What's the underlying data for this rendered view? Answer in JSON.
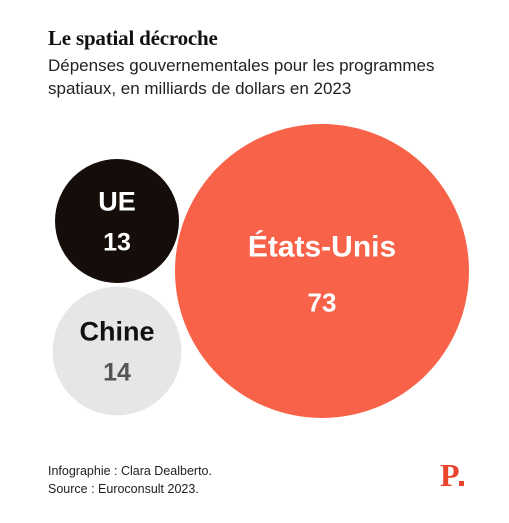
{
  "header": {
    "title": "Le spatial décroche",
    "subtitle": "Dépenses gouvernementales pour les programmes spatiaux, en milliards de dollars en 2023"
  },
  "chart_data": {
    "type": "bubble",
    "title": "Le spatial décroche",
    "subtitle": "Dépenses gouvernementales pour les programmes spatiaux, en milliards de dollars en 2023",
    "categories": [
      "États-Unis",
      "UE",
      "Chine"
    ],
    "values": [
      73,
      13,
      14
    ],
    "colors": [
      "#f86248",
      "#150d0a",
      "#e6e6e6"
    ],
    "label_colors": [
      "#ffffff",
      "#ffffff",
      "#111111"
    ],
    "value_colors": [
      "#ffffff",
      "#ffffff",
      "#555555"
    ]
  },
  "footer": {
    "credit": "Infographie : Clara Dealberto.",
    "source": "Source : Euroconsult 2023."
  },
  "brand": {
    "logo_letter": "P",
    "logo_color": "#e8452c"
  }
}
